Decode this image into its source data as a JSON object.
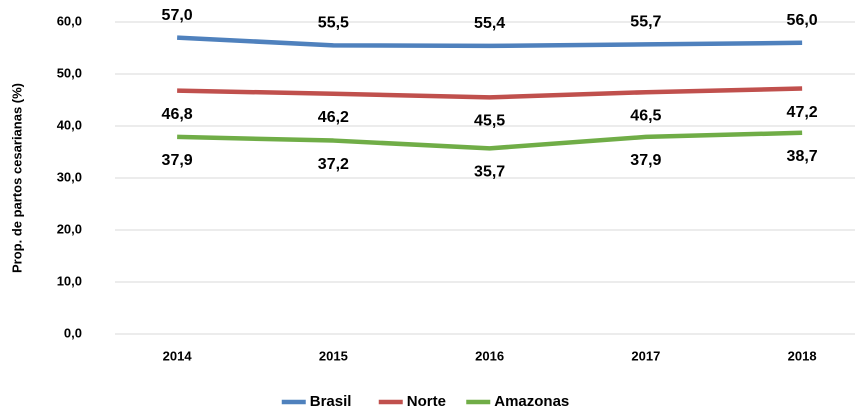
{
  "chart_data": {
    "type": "line",
    "y_label": "Prop. de partos cesarianas (%)",
    "categories": [
      "2014",
      "2015",
      "2016",
      "2017",
      "2018"
    ],
    "series": [
      {
        "name": "Brasil",
        "color": "#4f81bd",
        "values": [
          57.0,
          55.5,
          55.4,
          55.7,
          56.0
        ],
        "value_labels": [
          "57,0",
          "55,5",
          "55,4",
          "55,7",
          "56,0"
        ]
      },
      {
        "name": "Norte",
        "color": "#c0504d",
        "values": [
          46.8,
          46.2,
          45.5,
          46.5,
          47.2
        ],
        "value_labels": [
          "46,8",
          "46,2",
          "45,5",
          "46,5",
          "47,2"
        ]
      },
      {
        "name": "Amazonas",
        "color": "#70ad47",
        "values": [
          37.9,
          37.2,
          35.7,
          37.9,
          38.7
        ],
        "value_labels": [
          "37,9",
          "37,2",
          "35,7",
          "37,9",
          "38,7"
        ]
      }
    ],
    "ylim": [
      0,
      60
    ],
    "yticks": [
      {
        "value": 0,
        "label": "0,0"
      },
      {
        "value": 10,
        "label": "10,0"
      },
      {
        "value": 20,
        "label": "20,0"
      },
      {
        "value": 30,
        "label": "30,0"
      },
      {
        "value": 40,
        "label": "40,0"
      },
      {
        "value": 50,
        "label": "50,0"
      },
      {
        "value": 60,
        "label": "60,0"
      }
    ],
    "grid": true,
    "legend": "bottom"
  }
}
